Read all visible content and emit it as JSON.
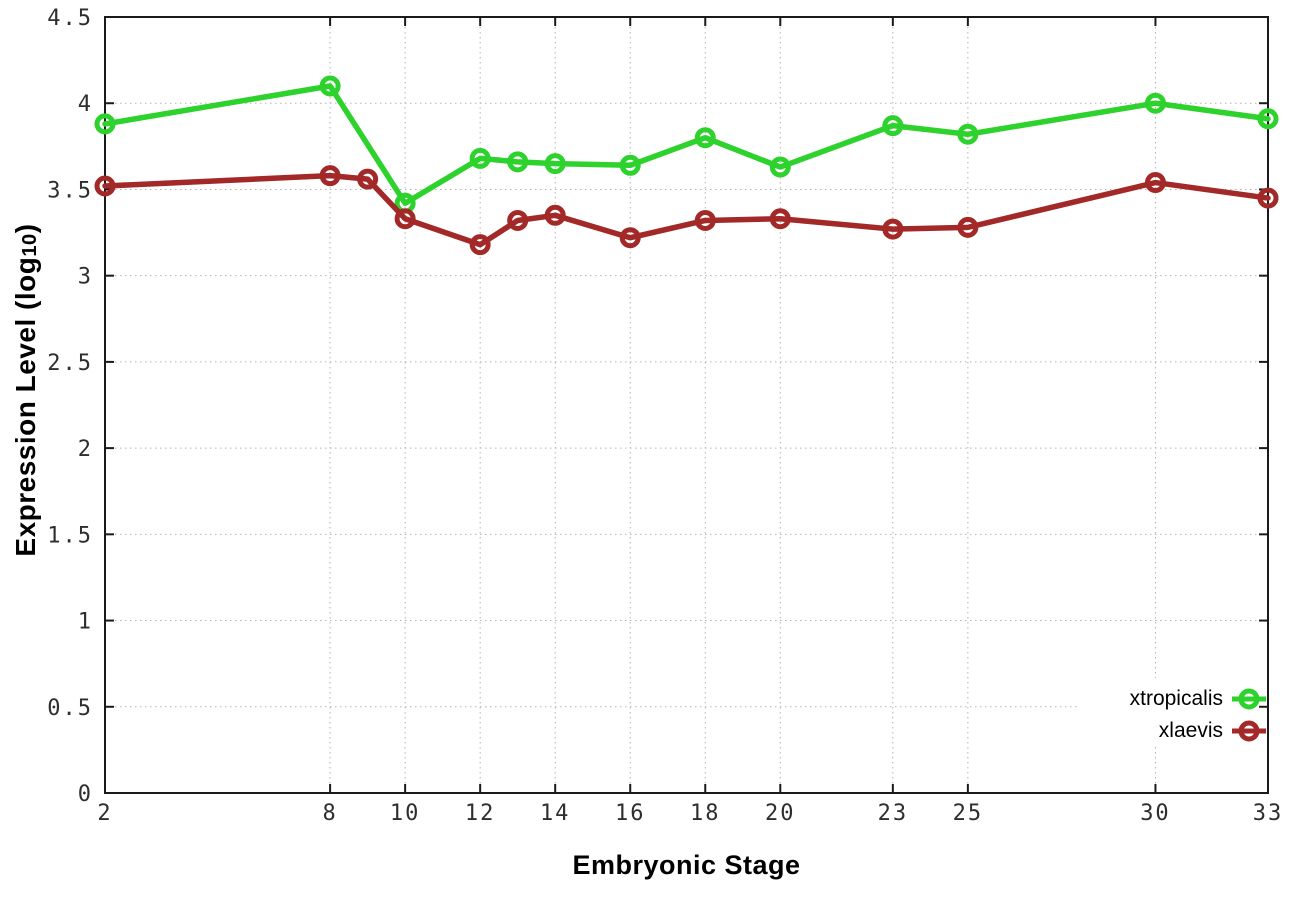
{
  "chart_data": {
    "type": "line",
    "title": "",
    "xlabel": "Embryonic Stage",
    "ylabel_main": "Expression Level (log",
    "ylabel_sub": "10",
    "ylabel_end": ")",
    "xlim": [
      2,
      33
    ],
    "ylim": [
      0,
      4.5
    ],
    "x_tick_labels": [
      "2",
      "8",
      "10",
      "12",
      "14",
      "16",
      "18",
      "20",
      "23",
      "25",
      "30",
      "33"
    ],
    "y_tick_labels": [
      "0",
      "0.5",
      "1",
      "1.5",
      "2",
      "2.5",
      "3",
      "3.5",
      "4",
      "4.5"
    ],
    "grid": true,
    "grid_color": "#b3b3b3",
    "border_color": "#1a1a1a",
    "tick_label_color": "#2e2e2e",
    "legend_position": "bottom-right",
    "series": [
      {
        "name": "xtropicalis",
        "color": "#2dd22d",
        "x": [
          2,
          8,
          10,
          12,
          13,
          14,
          16,
          18,
          20,
          23,
          25,
          30,
          33
        ],
        "values": [
          3.88,
          4.1,
          3.42,
          3.68,
          3.66,
          3.65,
          3.64,
          3.8,
          3.63,
          3.87,
          3.82,
          4.0,
          3.91
        ]
      },
      {
        "name": "xlaevis",
        "color": "#a32828",
        "x": [
          2,
          8,
          9,
          10,
          12,
          13,
          14,
          16,
          18,
          20,
          23,
          25,
          30,
          33
        ],
        "values": [
          3.52,
          3.58,
          3.56,
          3.33,
          3.18,
          3.32,
          3.35,
          3.22,
          3.32,
          3.33,
          3.27,
          3.28,
          3.54,
          3.45
        ]
      }
    ]
  }
}
